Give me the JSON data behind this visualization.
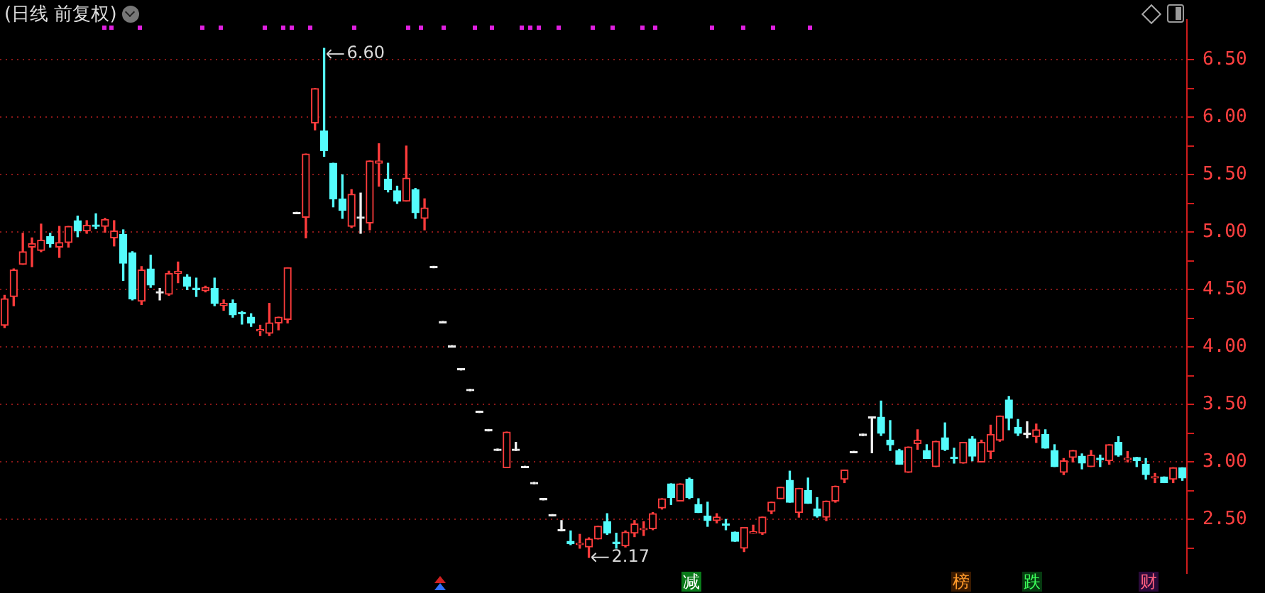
{
  "chart_data": {
    "type": "candlestick",
    "title": "(日线 前复权)",
    "categories": [
      null,
      null,
      null,
      null,
      null,
      null,
      null,
      null,
      null,
      null,
      null,
      null,
      null,
      null,
      null,
      null,
      null,
      null,
      null,
      null,
      null,
      null,
      null,
      null,
      null,
      null,
      null,
      null,
      null,
      null,
      null,
      null,
      null,
      null,
      null,
      null,
      null,
      null,
      null,
      null,
      null,
      null,
      null,
      null,
      null,
      null,
      null,
      null,
      null,
      null,
      null,
      null,
      null,
      null,
      null,
      null,
      null,
      null,
      null,
      null,
      null,
      null,
      null,
      null,
      null,
      null,
      null,
      null,
      null,
      null,
      null,
      null,
      null,
      null,
      null,
      null,
      null,
      null,
      null,
      null,
      null,
      null,
      null,
      null,
      null,
      null,
      null,
      null,
      null,
      null,
      null,
      null,
      null,
      null,
      null,
      null,
      null,
      null,
      null,
      null,
      null,
      null,
      null,
      null,
      null,
      null,
      null,
      null,
      null,
      null,
      null,
      null,
      null,
      null,
      null,
      null,
      null,
      null,
      null,
      null,
      null,
      null,
      null,
      null,
      null,
      null,
      null,
      null,
      null,
      null
    ],
    "ohlc": [
      [
        4.19,
        4.45,
        4.17,
        4.42
      ],
      [
        4.44,
        4.68,
        4.36,
        4.67
      ],
      [
        4.72,
        4.99,
        4.72,
        4.83
      ],
      [
        4.87,
        4.95,
        4.7,
        4.9
      ],
      [
        4.84,
        5.07,
        4.83,
        4.93
      ],
      [
        4.96,
        4.99,
        4.87,
        4.9
      ],
      [
        4.87,
        5.05,
        4.78,
        4.91
      ],
      [
        4.91,
        5.05,
        4.87,
        5.05
      ],
      [
        5.1,
        5.14,
        4.96,
        5.01
      ],
      [
        5.01,
        5.1,
        4.99,
        5.06
      ],
      [
        5.06,
        5.16,
        5.03,
        5.05
      ],
      [
        5.05,
        5.12,
        5.0,
        5.11
      ],
      [
        4.95,
        5.1,
        4.88,
        5.01
      ],
      [
        4.98,
        5.02,
        4.58,
        4.73
      ],
      [
        4.82,
        4.83,
        4.41,
        4.42
      ],
      [
        4.4,
        4.7,
        4.37,
        4.67
      ],
      [
        4.68,
        4.8,
        4.52,
        4.54
      ],
      [
        4.47,
        4.51,
        4.41,
        4.47
      ],
      [
        4.46,
        4.66,
        4.45,
        4.64
      ],
      [
        4.64,
        4.74,
        4.56,
        4.66
      ],
      [
        4.61,
        4.63,
        4.5,
        4.53
      ],
      [
        4.51,
        4.6,
        4.44,
        4.5
      ],
      [
        4.49,
        4.53,
        4.48,
        4.52
      ],
      [
        4.51,
        4.6,
        4.36,
        4.38
      ],
      [
        4.36,
        4.41,
        4.32,
        4.38
      ],
      [
        4.38,
        4.41,
        4.26,
        4.28
      ],
      [
        4.3,
        4.31,
        4.2,
        4.29
      ],
      [
        4.26,
        4.29,
        4.18,
        4.21
      ],
      [
        4.14,
        4.19,
        4.1,
        4.15
      ],
      [
        4.12,
        4.38,
        4.1,
        4.21
      ],
      [
        4.21,
        4.26,
        4.15,
        4.26
      ],
      [
        4.24,
        4.69,
        4.21,
        4.69
      ],
      [
        5.16,
        5.16,
        5.16,
        5.16
      ],
      [
        5.13,
        5.68,
        4.95,
        5.68
      ],
      [
        5.95,
        6.25,
        5.89,
        6.25
      ],
      [
        5.88,
        6.6,
        5.66,
        5.71
      ],
      [
        5.6,
        5.6,
        5.22,
        5.29
      ],
      [
        5.29,
        5.5,
        5.12,
        5.19
      ],
      [
        5.05,
        5.37,
        5.04,
        5.33
      ],
      [
        5.12,
        5.34,
        4.99,
        5.12
      ],
      [
        5.08,
        5.62,
        5.02,
        5.62
      ],
      [
        5.6,
        5.77,
        5.4,
        5.62
      ],
      [
        5.46,
        5.6,
        5.35,
        5.37
      ],
      [
        5.36,
        5.4,
        5.25,
        5.27
      ],
      [
        5.27,
        5.75,
        5.27,
        5.47
      ],
      [
        5.37,
        5.38,
        5.12,
        5.17
      ],
      [
        5.12,
        5.29,
        5.02,
        5.21
      ],
      [
        4.69,
        4.69,
        4.69,
        4.69
      ],
      [
        4.21,
        4.21,
        4.21,
        4.21
      ],
      [
        4.0,
        4.0,
        4.0,
        4.0
      ],
      [
        3.8,
        3.8,
        3.8,
        3.8
      ],
      [
        3.62,
        3.62,
        3.62,
        3.62
      ],
      [
        3.43,
        3.43,
        3.43,
        3.43
      ],
      [
        3.27,
        3.27,
        3.27,
        3.27
      ],
      [
        3.1,
        3.1,
        3.1,
        3.1
      ],
      [
        2.95,
        3.26,
        2.95,
        3.26
      ],
      [
        3.1,
        3.17,
        3.1,
        3.1
      ],
      [
        2.95,
        2.95,
        2.95,
        2.95
      ],
      [
        2.81,
        2.81,
        2.81,
        2.81
      ],
      [
        2.67,
        2.67,
        2.67,
        2.67
      ],
      [
        2.53,
        2.53,
        2.53,
        2.53
      ],
      [
        2.4,
        2.49,
        2.4,
        2.4
      ],
      [
        2.31,
        2.4,
        2.28,
        2.29
      ],
      [
        2.28,
        2.37,
        2.25,
        2.29
      ],
      [
        2.26,
        2.34,
        2.17,
        2.33
      ],
      [
        2.33,
        2.44,
        2.33,
        2.44
      ],
      [
        2.48,
        2.55,
        2.37,
        2.38
      ],
      [
        2.3,
        2.38,
        2.25,
        2.29
      ],
      [
        2.27,
        2.4,
        2.26,
        2.39
      ],
      [
        2.38,
        2.49,
        2.35,
        2.46
      ],
      [
        2.41,
        2.48,
        2.36,
        2.42
      ],
      [
        2.42,
        2.56,
        2.41,
        2.55
      ],
      [
        2.6,
        2.68,
        2.59,
        2.68
      ],
      [
        2.81,
        2.81,
        2.63,
        2.69
      ],
      [
        2.66,
        2.81,
        2.66,
        2.81
      ],
      [
        2.85,
        2.86,
        2.68,
        2.69
      ],
      [
        2.63,
        2.68,
        2.56,
        2.56
      ],
      [
        2.53,
        2.65,
        2.44,
        2.49
      ],
      [
        2.49,
        2.55,
        2.47,
        2.52
      ],
      [
        2.46,
        2.5,
        2.41,
        2.45
      ],
      [
        2.39,
        2.39,
        2.31,
        2.31
      ],
      [
        2.25,
        2.43,
        2.22,
        2.43
      ],
      [
        2.38,
        2.45,
        2.38,
        2.39
      ],
      [
        2.38,
        2.52,
        2.37,
        2.52
      ],
      [
        2.57,
        2.65,
        2.55,
        2.65
      ],
      [
        2.68,
        2.78,
        2.68,
        2.78
      ],
      [
        2.84,
        2.92,
        2.65,
        2.65
      ],
      [
        2.56,
        2.77,
        2.52,
        2.77
      ],
      [
        2.75,
        2.86,
        2.64,
        2.64
      ],
      [
        2.59,
        2.69,
        2.52,
        2.53
      ],
      [
        2.52,
        2.66,
        2.49,
        2.66
      ],
      [
        2.66,
        2.79,
        2.65,
        2.79
      ],
      [
        2.85,
        2.93,
        2.82,
        2.93
      ],
      [
        3.08,
        3.08,
        3.08,
        3.08
      ],
      [
        3.23,
        3.23,
        3.23,
        3.23
      ],
      [
        3.38,
        3.38,
        3.08,
        3.38
      ],
      [
        3.39,
        3.53,
        3.23,
        3.25
      ],
      [
        3.19,
        3.36,
        3.1,
        3.15
      ],
      [
        3.1,
        3.11,
        2.98,
        2.98
      ],
      [
        2.91,
        3.13,
        2.91,
        3.13
      ],
      [
        3.16,
        3.28,
        3.11,
        3.19
      ],
      [
        3.1,
        3.15,
        3.03,
        3.03
      ],
      [
        2.96,
        3.18,
        2.96,
        3.18
      ],
      [
        3.21,
        3.34,
        3.1,
        3.11
      ],
      [
        3.04,
        3.12,
        2.99,
        3.03
      ],
      [
        2.99,
        3.17,
        2.99,
        3.17
      ],
      [
        3.2,
        3.22,
        3.01,
        3.05
      ],
      [
        3.0,
        3.19,
        3.0,
        3.17
      ],
      [
        3.09,
        3.32,
        3.03,
        3.24
      ],
      [
        3.19,
        3.4,
        3.18,
        3.4
      ],
      [
        3.54,
        3.57,
        3.28,
        3.38
      ],
      [
        3.3,
        3.37,
        3.23,
        3.25
      ],
      [
        3.24,
        3.35,
        3.21,
        3.24
      ],
      [
        3.22,
        3.33,
        3.17,
        3.28
      ],
      [
        3.24,
        3.28,
        3.12,
        3.12
      ],
      [
        3.1,
        3.15,
        2.96,
        2.96
      ],
      [
        2.91,
        3.03,
        2.89,
        3.01
      ],
      [
        3.04,
        3.1,
        3.0,
        3.1
      ],
      [
        3.05,
        3.07,
        2.94,
        2.99
      ],
      [
        2.96,
        3.1,
        2.96,
        3.06
      ],
      [
        3.03,
        3.06,
        2.96,
        3.02
      ],
      [
        3.01,
        3.15,
        2.98,
        3.15
      ],
      [
        3.17,
        3.22,
        3.05,
        3.06
      ],
      [
        3.02,
        3.09,
        3.0,
        3.03
      ],
      [
        3.04,
        3.04,
        2.96,
        3.01
      ],
      [
        2.98,
        3.03,
        2.85,
        2.89
      ],
      [
        2.86,
        2.9,
        2.82,
        2.87
      ],
      [
        2.87,
        2.87,
        2.82,
        2.82
      ],
      [
        2.85,
        2.95,
        2.82,
        2.95
      ],
      [
        2.95,
        2.95,
        2.84,
        2.86
      ]
    ],
    "ylim": [
      2.03,
      6.85
    ],
    "yticks": [
      {
        "value": 2.25,
        "label": null
      },
      {
        "value": 2.5,
        "label": "2.50"
      },
      {
        "value": 2.75,
        "label": null
      },
      {
        "value": 3,
        "label": "3.00"
      },
      {
        "value": 3.25,
        "label": null
      },
      {
        "value": 3.5,
        "label": "3.50"
      },
      {
        "value": 3.75,
        "label": null
      },
      {
        "value": 4,
        "label": "4.00"
      },
      {
        "value": 4.25,
        "label": null
      },
      {
        "value": 4.5,
        "label": "4.50"
      },
      {
        "value": 4.75,
        "label": null
      },
      {
        "value": 5,
        "label": "5.00"
      },
      {
        "value": 5.25,
        "label": null
      },
      {
        "value": 5.5,
        "label": "5.50"
      },
      {
        "value": 5.75,
        "label": null
      },
      {
        "value": 6,
        "label": "6.00"
      },
      {
        "value": 6.25,
        "label": null
      },
      {
        "value": 6.5,
        "label": "6.50"
      }
    ],
    "grid": "y",
    "tick_labels": "y",
    "annotations": [
      "6.60",
      "2.17",
      "减",
      "榜",
      "跌",
      "财"
    ]
  }
}
